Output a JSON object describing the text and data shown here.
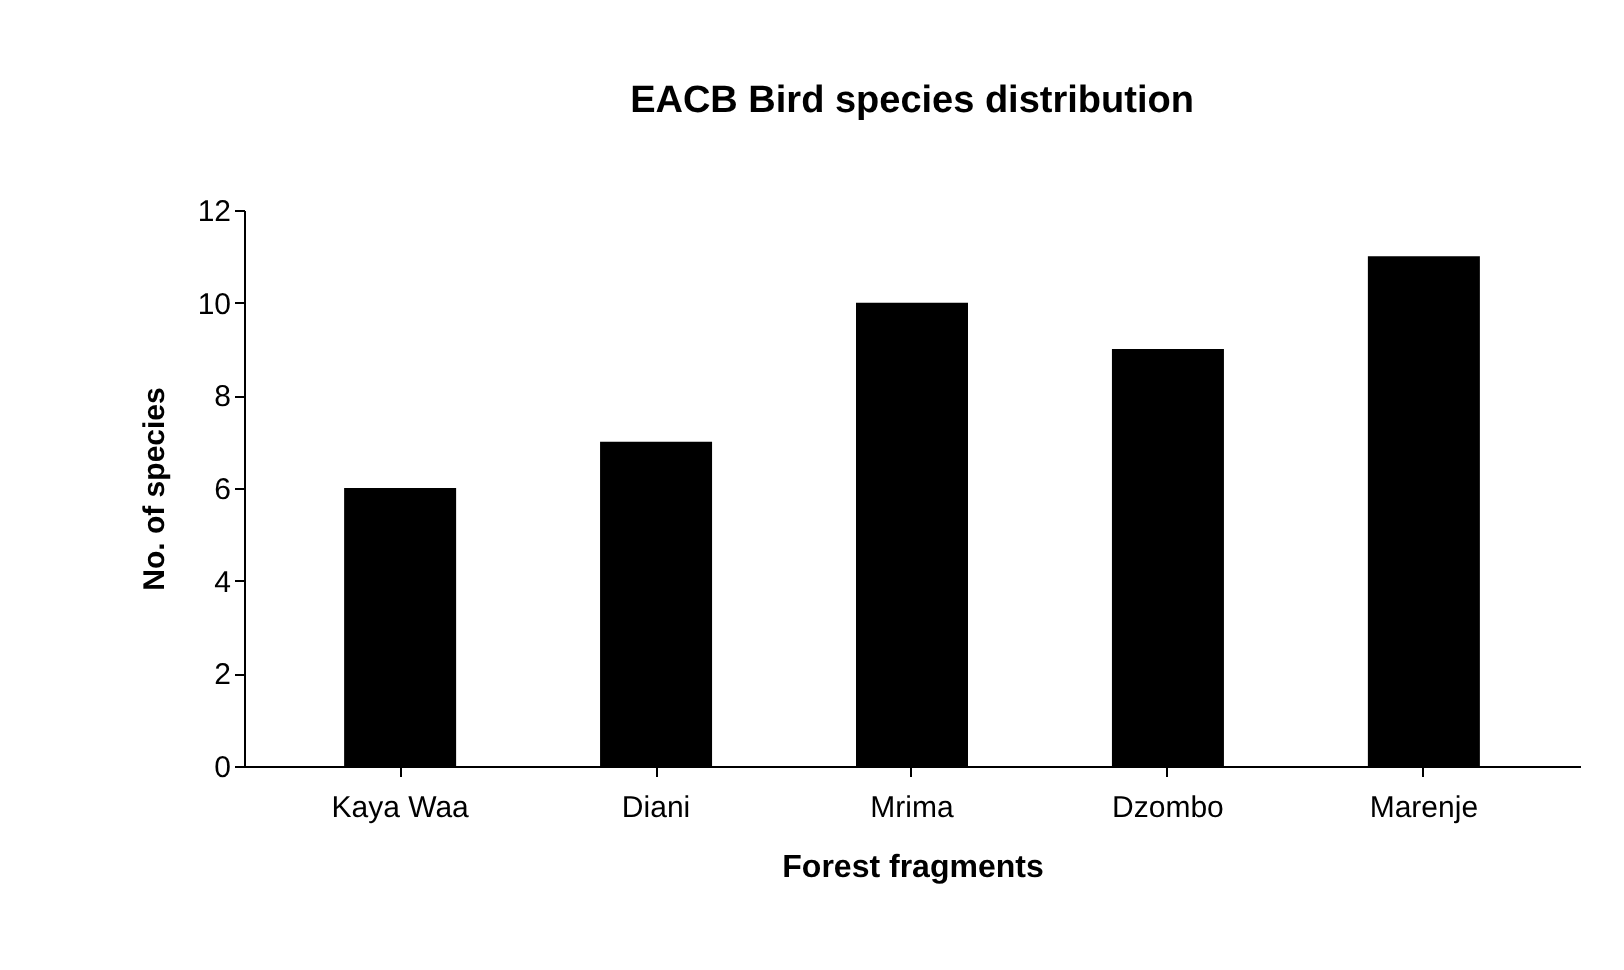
{
  "chart_data": {
    "type": "bar",
    "title": "EACB Bird species distribution",
    "xlabel": "Forest fragments",
    "ylabel": "No. of species",
    "categories": [
      "Kaya Waa",
      "Diani",
      "Mrima",
      "Dzombo",
      "Marenje"
    ],
    "values": [
      6,
      7,
      10,
      9,
      11
    ],
    "color": "#000000",
    "ylim": [
      0,
      12
    ],
    "yticks": [
      0,
      2,
      4,
      6,
      8,
      10,
      12
    ],
    "grid": false
  }
}
